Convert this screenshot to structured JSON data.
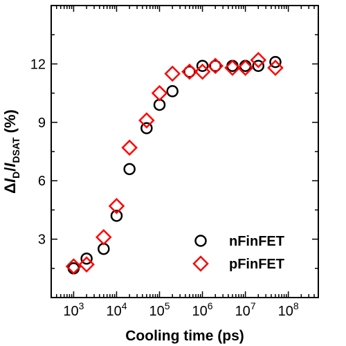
{
  "chart_data": {
    "type": "scatter",
    "xscale": "log",
    "xlim": [
      300,
      500000000
    ],
    "ylim": [
      0,
      15
    ],
    "xticks": [
      1000,
      10000,
      100000,
      1000000,
      10000000,
      100000000
    ],
    "xtick_labels": [
      {
        "base": "10",
        "exp": "3"
      },
      {
        "base": "10",
        "exp": "4"
      },
      {
        "base": "10",
        "exp": "5"
      },
      {
        "base": "10",
        "exp": "6"
      },
      {
        "base": "10",
        "exp": "7"
      },
      {
        "base": "10",
        "exp": "8"
      }
    ],
    "yticks": [
      3,
      6,
      9,
      12
    ],
    "ytick_labels": [
      "3",
      "6",
      "9",
      "12"
    ],
    "xlabel": "Cooling time (ps)",
    "ylabel": {
      "delta": "Δ",
      "i1": "I",
      "sub1": "D",
      "slash": "/",
      "i2": "I",
      "sub2": "DSAT",
      "unit": " (%)"
    },
    "grid": false,
    "legend_position": "bottom-right",
    "series": [
      {
        "name": "nFinFET",
        "marker": "circle",
        "color": "#000000",
        "x": [
          1000,
          2000,
          5000,
          10000,
          20000,
          50000,
          100000,
          200000,
          500000,
          1000000,
          2000000,
          5000000,
          10000000,
          20000000,
          50000000
        ],
        "y": [
          1.5,
          2.0,
          2.5,
          4.2,
          6.6,
          8.7,
          9.9,
          10.6,
          11.6,
          11.9,
          11.9,
          11.9,
          11.9,
          11.9,
          12.1
        ]
      },
      {
        "name": "pFinFET",
        "marker": "diamond",
        "color": "#ff0000",
        "x": [
          1000,
          2000,
          5000,
          10000,
          20000,
          50000,
          100000,
          200000,
          500000,
          1000000,
          2000000,
          5000000,
          10000000,
          20000000,
          50000000
        ],
        "y": [
          1.6,
          1.7,
          3.1,
          4.7,
          7.7,
          9.1,
          10.5,
          11.5,
          11.6,
          11.6,
          11.9,
          11.8,
          11.8,
          12.2,
          11.8
        ]
      }
    ]
  }
}
